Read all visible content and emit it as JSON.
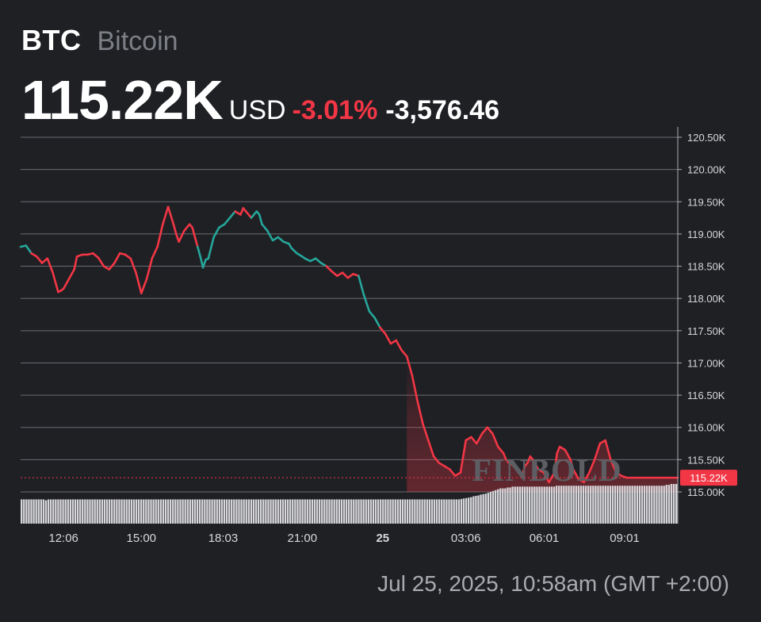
{
  "header": {
    "ticker": "BTC",
    "name": "Bitcoin",
    "price": "115.22K",
    "currency": "USD",
    "change_pct": "-3.01%",
    "change_abs": "-3,576.46"
  },
  "watermark": "FINBOLD",
  "timestamp": "Jul 25, 2025, 10:58am (GMT +2:00)",
  "colors": {
    "background": "#1f2024",
    "up_line": "#26a69a",
    "down_line": "#f23645",
    "volume_bar": "#d8d8dc",
    "grid": "#6a6c72"
  },
  "chart_data": {
    "type": "line",
    "y_tick_labels": [
      "120.50K",
      "120.00K",
      "119.50K",
      "119.00K",
      "118.50K",
      "118.00K",
      "117.50K",
      "117.00K",
      "116.50K",
      "116.00K",
      "115.50K",
      "115.00K"
    ],
    "y_ticks": [
      120500,
      120000,
      119500,
      119000,
      118500,
      118000,
      117500,
      117000,
      116500,
      116000,
      115500,
      115000
    ],
    "ylim": [
      114500,
      120600
    ],
    "x_tick_labels": [
      "12:06",
      "15:00",
      "18:03",
      "21:00",
      "25",
      "03:06",
      "06:01",
      "09:01"
    ],
    "x_ticks_hours": [
      12.1,
      15.0,
      18.05,
      21.0,
      24.0,
      27.1,
      30.02,
      33.02
    ],
    "x_range_hours": [
      10.5,
      35.0
    ],
    "current_price_label": "115.22K",
    "current_price": 115220,
    "grid": true,
    "series": [
      {
        "times_hours": [
          10.5,
          10.7,
          10.9,
          11.1,
          11.3,
          11.5,
          11.7,
          11.9,
          12.0,
          12.1,
          12.3,
          12.5,
          12.6,
          12.8,
          13.0,
          13.2,
          13.4,
          13.6,
          13.8,
          14.0,
          14.2,
          14.4,
          14.6,
          14.8,
          15.0,
          15.2,
          15.4,
          15.6,
          15.8,
          16.0,
          16.2,
          16.3,
          16.4,
          16.6,
          16.8,
          16.9,
          17.0,
          17.1,
          17.2,
          17.3,
          17.4,
          17.5,
          17.7,
          17.9,
          18.1,
          18.3,
          18.5,
          18.7,
          18.8,
          18.9,
          19.1,
          19.3,
          19.4,
          19.5,
          19.7,
          19.9,
          20.1,
          20.3,
          20.5,
          20.6,
          20.8,
          21.0,
          21.1,
          21.3,
          21.5,
          21.7,
          21.9,
          22.1,
          22.3,
          22.5,
          22.7,
          22.9,
          23.1,
          23.3,
          23.5,
          23.7,
          23.9,
          24.1,
          24.3,
          24.5,
          24.7,
          24.9,
          25.1,
          25.3,
          25.5,
          25.7,
          25.9,
          26.1,
          26.3,
          26.5,
          26.7,
          26.9,
          27.1,
          27.3,
          27.5,
          27.7,
          27.9,
          28.1,
          28.3,
          28.4,
          28.5,
          28.6,
          28.7,
          28.9,
          29.0,
          29.1,
          29.2,
          29.3,
          29.4,
          29.5,
          29.6,
          29.8,
          30.0,
          30.2,
          30.4,
          30.5,
          30.6,
          30.8,
          31.0,
          31.1,
          31.3,
          31.5,
          31.7,
          31.9,
          32.1,
          32.3,
          32.5,
          32.7,
          32.9,
          33.1,
          33.3,
          33.5,
          33.7,
          33.9,
          34.1,
          34.3,
          34.5,
          34.7,
          34.9,
          35.0
        ],
        "values": [
          118800,
          118820,
          118700,
          118650,
          118550,
          118620,
          118400,
          118100,
          118120,
          118150,
          118300,
          118450,
          118650,
          118680,
          118680,
          118700,
          118630,
          118500,
          118450,
          118550,
          118700,
          118680,
          118620,
          118400,
          118080,
          118300,
          118620,
          118800,
          119150,
          119420,
          119150,
          119000,
          118880,
          119050,
          119150,
          119100,
          118950,
          118800,
          118650,
          118480,
          118600,
          118620,
          118950,
          119100,
          119150,
          119250,
          119350,
          119300,
          119400,
          119350,
          119250,
          119350,
          119300,
          119150,
          119050,
          118900,
          118950,
          118880,
          118850,
          118780,
          118700,
          118650,
          118620,
          118580,
          118620,
          118550,
          118500,
          118420,
          118350,
          118400,
          118320,
          118380,
          118350,
          118050,
          117800,
          117700,
          117550,
          117450,
          117300,
          117350,
          117200,
          117100,
          116800,
          116400,
          116050,
          115800,
          115550,
          115450,
          115400,
          115350,
          115250,
          115300,
          115800,
          115850,
          115750,
          115900,
          116000,
          115900,
          115700,
          115650,
          115600,
          115500,
          115450,
          115400,
          115350,
          115300,
          115250,
          115400,
          115450,
          115550,
          115500,
          115350,
          115300,
          115150,
          115300,
          115600,
          115700,
          115650,
          115500,
          115350,
          115200,
          115150,
          115300,
          115500,
          115750,
          115800,
          115500,
          115300,
          115250,
          115220,
          115220,
          115220,
          115220,
          115220,
          115220,
          115220,
          115220,
          115220,
          115220,
          115220
        ],
        "up_segment_hours": [
          [
            10.5,
            10.85
          ],
          [
            17.1,
            18.45
          ],
          [
            19.1,
            21.8
          ],
          [
            23.1,
            23.9
          ]
        ]
      }
    ],
    "volume": [
      55,
      55,
      55,
      55,
      55,
      55,
      55,
      55,
      55,
      55,
      53,
      55,
      55,
      55,
      55,
      55,
      55,
      55,
      55,
      55,
      55,
      55,
      55,
      55,
      55,
      55,
      55,
      55,
      55,
      55,
      55,
      55,
      55,
      55,
      55,
      55,
      55,
      55,
      55,
      55,
      55,
      55,
      55,
      55,
      55,
      55,
      55,
      55,
      55,
      55,
      55,
      55,
      55,
      55,
      55,
      55,
      55,
      55,
      55,
      55,
      55,
      55,
      55,
      55,
      55,
      55,
      55,
      55,
      55,
      55,
      55,
      55,
      55,
      55,
      55,
      55,
      55,
      55,
      55,
      55,
      55,
      55,
      55,
      55,
      55,
      55,
      55,
      55,
      55,
      55,
      55,
      55,
      55,
      55,
      55,
      55,
      55,
      55,
      55,
      55,
      55,
      55,
      55,
      55,
      55,
      55,
      55,
      55,
      55,
      55,
      55,
      55,
      55,
      55,
      55,
      55,
      55,
      55,
      55,
      55,
      55,
      55,
      55,
      55,
      55,
      55,
      55,
      55,
      55,
      55,
      55,
      55,
      55,
      55,
      55,
      55,
      55,
      55,
      55,
      55,
      55,
      55,
      55,
      55,
      55,
      55,
      55,
      55,
      55,
      55,
      55,
      55,
      55,
      55,
      55,
      55,
      55,
      55,
      55,
      55,
      55,
      55,
      55,
      55,
      55,
      55,
      55,
      55,
      55,
      55,
      55,
      55,
      55,
      55,
      55,
      55,
      55,
      55,
      55,
      55,
      56,
      57,
      58,
      59,
      60,
      62,
      63,
      64,
      66,
      67,
      68,
      70,
      72,
      74,
      76,
      78,
      80,
      80,
      80,
      82,
      82,
      84,
      84,
      84,
      84,
      84,
      84,
      84,
      84,
      84,
      84,
      84,
      84,
      84,
      84,
      84,
      84,
      84,
      84,
      86,
      86,
      86,
      86,
      86,
      86,
      86,
      86,
      86,
      86,
      86,
      86,
      86,
      86,
      86,
      86,
      86,
      86,
      86,
      86,
      86,
      86,
      86,
      86,
      86,
      86,
      86,
      86,
      86,
      86,
      86,
      86,
      86,
      86,
      86,
      86,
      86,
      86,
      86,
      86,
      86,
      86,
      86,
      86,
      86,
      88,
      88,
      90,
      90,
      90
    ]
  }
}
